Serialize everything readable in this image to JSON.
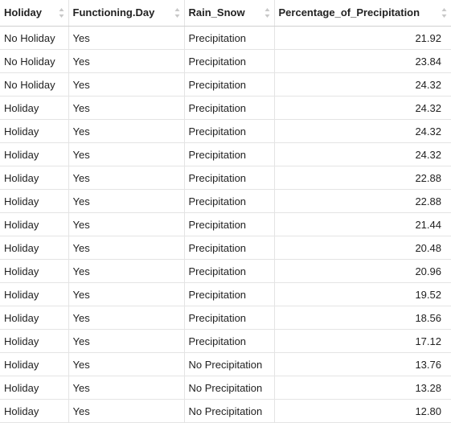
{
  "columns": [
    {
      "label": "Holiday"
    },
    {
      "label": "Functioning.Day"
    },
    {
      "label": "Rain_Snow"
    },
    {
      "label": "Percentage_of_Precipitation"
    }
  ],
  "rows": [
    [
      "No Holiday",
      "Yes",
      "Precipitation",
      "21.92"
    ],
    [
      "No Holiday",
      "Yes",
      "Precipitation",
      "23.84"
    ],
    [
      "No Holiday",
      "Yes",
      "Precipitation",
      "24.32"
    ],
    [
      "Holiday",
      "Yes",
      "Precipitation",
      "24.32"
    ],
    [
      "Holiday",
      "Yes",
      "Precipitation",
      "24.32"
    ],
    [
      "Holiday",
      "Yes",
      "Precipitation",
      "24.32"
    ],
    [
      "Holiday",
      "Yes",
      "Precipitation",
      "22.88"
    ],
    [
      "Holiday",
      "Yes",
      "Precipitation",
      "22.88"
    ],
    [
      "Holiday",
      "Yes",
      "Precipitation",
      "21.44"
    ],
    [
      "Holiday",
      "Yes",
      "Precipitation",
      "20.48"
    ],
    [
      "Holiday",
      "Yes",
      "Precipitation",
      "20.96"
    ],
    [
      "Holiday",
      "Yes",
      "Precipitation",
      "19.52"
    ],
    [
      "Holiday",
      "Yes",
      "Precipitation",
      "18.56"
    ],
    [
      "Holiday",
      "Yes",
      "Precipitation",
      "17.12"
    ],
    [
      "Holiday",
      "Yes",
      "No Precipitation",
      "13.76"
    ],
    [
      "Holiday",
      "Yes",
      "No Precipitation",
      "13.28"
    ],
    [
      "Holiday",
      "Yes",
      "No Precipitation",
      "12.80"
    ]
  ],
  "colors": {
    "sort_icon": "#c8c8c8",
    "grid_line": "#e4e4e4"
  }
}
